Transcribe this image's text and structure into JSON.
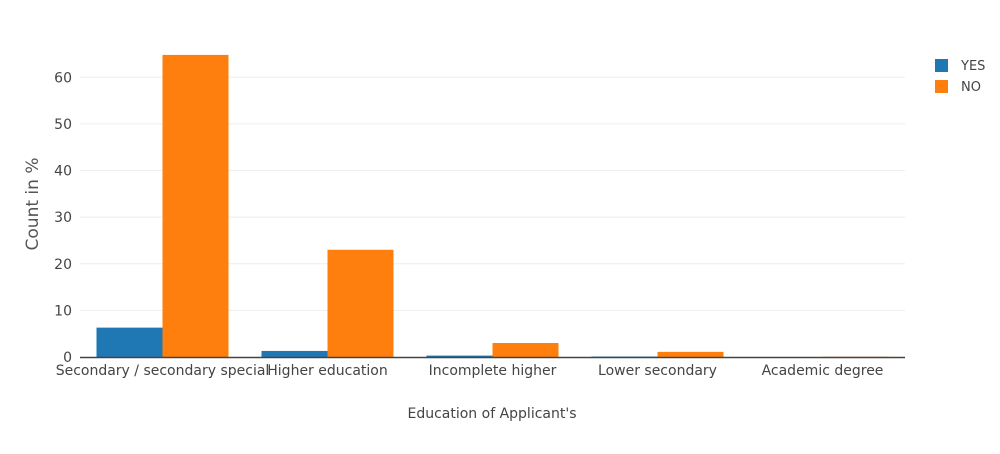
{
  "chart_data": {
    "type": "bar",
    "title": "",
    "xlabel": "Education of Applicant's",
    "ylabel": "Count in %",
    "categories": [
      "Secondary / secondary special",
      "Higher education",
      "Incomplete higher",
      "Lower secondary",
      "Academic degree"
    ],
    "series": [
      {
        "name": "YES",
        "color": "#1f77b4",
        "values": [
          6.3,
          1.3,
          0.3,
          0.1,
          0.0
        ]
      },
      {
        "name": "NO",
        "color": "#ff7f0e",
        "values": [
          64.8,
          23.0,
          3.0,
          1.1,
          0.05
        ]
      }
    ],
    "ylim": [
      0,
      68
    ],
    "yticks": [
      0,
      10,
      20,
      30,
      40,
      50,
      60
    ],
    "grid": true,
    "legend_position": "top-right"
  }
}
